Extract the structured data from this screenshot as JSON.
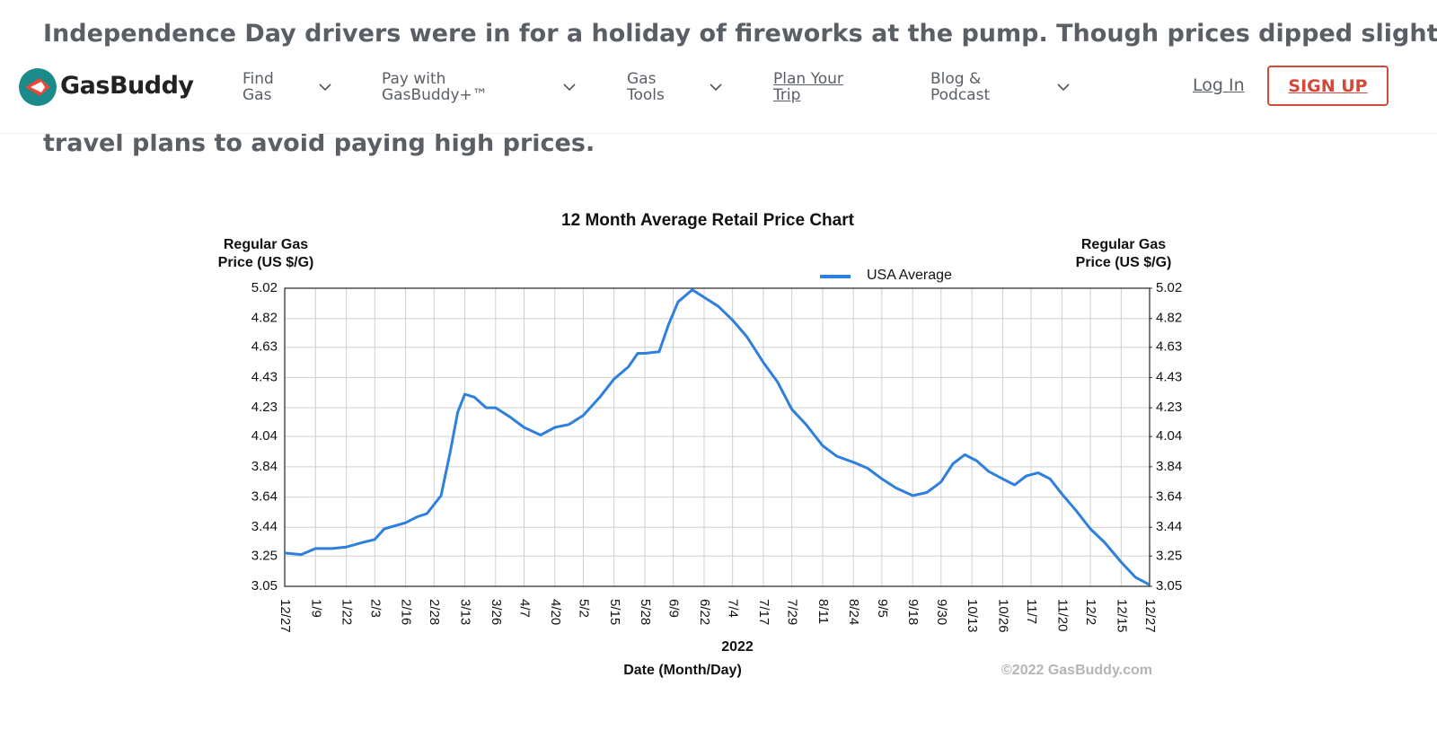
{
  "article": {
    "lines": [
      "Independence Day drivers were in for a holiday of fireworks at the pump. Though prices dipped slightly",
      "travel plans to avoid paying high prices."
    ]
  },
  "nav": {
    "logo": "GasBuddy",
    "items": [
      "Find Gas",
      "Pay with GasBuddy+™",
      "Gas Tools",
      "Plan Your Trip",
      "Blog & Podcast"
    ],
    "login": "Log In",
    "signup": "SIGN UP"
  },
  "chart_data": {
    "type": "line",
    "title": "12 Month Average Retail Price Chart",
    "ylabel": [
      "Regular Gas",
      "Price (US $/G)"
    ],
    "y2label": [
      "Regular Gas",
      "Price (US $/G)"
    ],
    "xlabel_year": "2022",
    "xlabel": "Date (Month/Day)",
    "credit": "©2022 GasBuddy.com",
    "grid": true,
    "ylim": [
      3.05,
      5.02
    ],
    "yticks": [
      3.05,
      3.25,
      3.44,
      3.64,
      3.84,
      4.04,
      4.23,
      4.43,
      4.63,
      4.82,
      5.02
    ],
    "y2lim": [
      3.05,
      5.02
    ],
    "y2ticks": [
      3.05,
      3.25,
      3.44,
      3.64,
      3.84,
      4.04,
      4.23,
      4.43,
      4.63,
      4.82,
      5.02
    ],
    "xlim": [
      0,
      365
    ],
    "xticks": [
      {
        "value": 0,
        "label": "12/27"
      },
      {
        "value": 13,
        "label": "1/9"
      },
      {
        "value": 26,
        "label": "1/22"
      },
      {
        "value": 38,
        "label": "2/3"
      },
      {
        "value": 51,
        "label": "2/16"
      },
      {
        "value": 63,
        "label": "2/28"
      },
      {
        "value": 76,
        "label": "3/13"
      },
      {
        "value": 89,
        "label": "3/26"
      },
      {
        "value": 101,
        "label": "4/7"
      },
      {
        "value": 114,
        "label": "4/20"
      },
      {
        "value": 126,
        "label": "5/2"
      },
      {
        "value": 139,
        "label": "5/15"
      },
      {
        "value": 152,
        "label": "5/28"
      },
      {
        "value": 164,
        "label": "6/9"
      },
      {
        "value": 177,
        "label": "6/22"
      },
      {
        "value": 189,
        "label": "7/4"
      },
      {
        "value": 202,
        "label": "7/17"
      },
      {
        "value": 214,
        "label": "7/29"
      },
      {
        "value": 227,
        "label": "8/11"
      },
      {
        "value": 240,
        "label": "8/24"
      },
      {
        "value": 252,
        "label": "9/5"
      },
      {
        "value": 265,
        "label": "9/18"
      },
      {
        "value": 277,
        "label": "9/30"
      },
      {
        "value": 290,
        "label": "10/13"
      },
      {
        "value": 303,
        "label": "10/26"
      },
      {
        "value": 315,
        "label": "11/7"
      },
      {
        "value": 328,
        "label": "11/20"
      },
      {
        "value": 340,
        "label": "12/2"
      },
      {
        "value": 353,
        "label": "12/15"
      },
      {
        "value": 365,
        "label": "12/27"
      }
    ],
    "x": [
      0,
      7,
      13,
      20,
      26,
      33,
      38,
      42,
      51,
      56,
      60,
      63,
      66,
      70,
      73,
      76,
      80,
      85,
      89,
      95,
      101,
      108,
      114,
      120,
      126,
      133,
      139,
      145,
      149,
      152,
      158,
      162,
      166,
      172,
      177,
      183,
      189,
      195,
      202,
      208,
      214,
      220,
      227,
      233,
      240,
      246,
      252,
      258,
      265,
      271,
      277,
      282,
      287,
      292,
      297,
      303,
      308,
      313,
      318,
      323,
      328,
      334,
      340,
      346,
      353,
      359,
      365
    ],
    "series": [
      {
        "name": "USA Average",
        "color": "#2f7fdc",
        "values": [
          3.27,
          3.26,
          3.3,
          3.3,
          3.31,
          3.34,
          3.36,
          3.43,
          3.47,
          3.51,
          3.53,
          3.59,
          3.65,
          3.95,
          4.2,
          4.32,
          4.3,
          4.23,
          4.23,
          4.17,
          4.1,
          4.05,
          4.1,
          4.12,
          4.18,
          4.3,
          4.42,
          4.5,
          4.59,
          4.59,
          4.6,
          4.78,
          4.93,
          5.01,
          4.96,
          4.9,
          4.81,
          4.7,
          4.53,
          4.4,
          4.22,
          4.12,
          3.98,
          3.91,
          3.87,
          3.83,
          3.76,
          3.7,
          3.65,
          3.67,
          3.74,
          3.86,
          3.92,
          3.88,
          3.81,
          3.76,
          3.72,
          3.78,
          3.8,
          3.76,
          3.66,
          3.55,
          3.43,
          3.34,
          3.21,
          3.11,
          3.06
        ]
      }
    ]
  }
}
